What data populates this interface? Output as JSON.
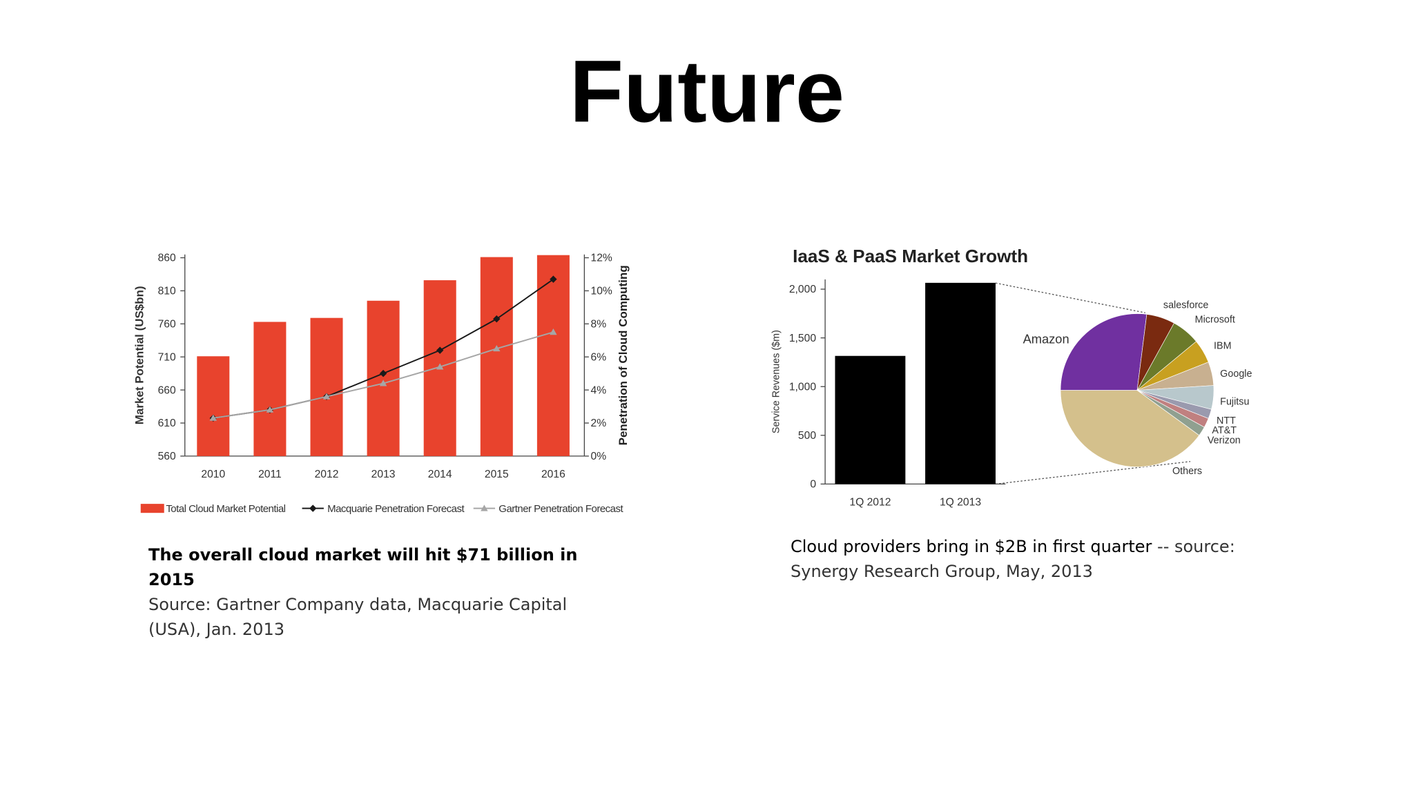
{
  "title": "Future",
  "captions": [
    {
      "headline": "The overall cloud market will hit $71 billion in 2015",
      "source": "Source: Gartner Company data, Macquarie Capital (USA), Jan. 2013"
    },
    {
      "headline": "Cloud providers bring in $2B in first quarter",
      "source": "-- source: Synergy Research Group, May, 2013"
    }
  ],
  "chart_data": [
    {
      "type": "bar",
      "categories": [
        "2010",
        "2011",
        "2012",
        "2013",
        "2014",
        "2015",
        "2016"
      ],
      "y_label": "Market Potential (US$bn)",
      "y2_label": "Penetration of Cloud Computing",
      "ylim": [
        560,
        865
      ],
      "yticks": [
        560,
        610,
        660,
        710,
        760,
        810,
        860
      ],
      "y2lim": [
        0,
        12.2
      ],
      "y2ticks": [
        {
          "value": 0,
          "label": "0%"
        },
        {
          "value": 2,
          "label": "2%"
        },
        {
          "value": 4,
          "label": "4%"
        },
        {
          "value": 6,
          "label": "6%"
        },
        {
          "value": 8,
          "label": "8%"
        },
        {
          "value": 10,
          "label": "10%"
        },
        {
          "value": 12,
          "label": "12%"
        }
      ],
      "legend": "bottom",
      "series": [
        {
          "name": "Total Cloud Market Potential",
          "type": "bar",
          "color": "#e8432d",
          "values": [
            711,
            763,
            769,
            795,
            826,
            861,
            864
          ]
        },
        {
          "name": "Macquarie Penetration Forecast",
          "type": "line",
          "axis": "y2",
          "marker": "diamond",
          "color": "#1a1a1a",
          "values": [
            2.3,
            2.8,
            3.6,
            5.0,
            6.4,
            8.3,
            10.7
          ]
        },
        {
          "name": "Gartner Penetration Forecast",
          "type": "line",
          "axis": "y2",
          "marker": "triangle",
          "color": "#a6a6a6",
          "values": [
            2.3,
            2.8,
            3.6,
            4.4,
            5.4,
            6.5,
            7.5
          ]
        }
      ]
    },
    {
      "type": "bar",
      "title": "IaaS & PaaS Market Growth",
      "categories": [
        "1Q 2012",
        "1Q 2013"
      ],
      "y_label": "Service Revenues ($m)",
      "ylim": [
        0,
        2100
      ],
      "yticks": [
        0,
        500,
        {
          "value": 1000,
          "label": "1,000"
        },
        {
          "value": 1500,
          "label": "1,500"
        },
        {
          "value": 2000,
          "label": "2,000"
        }
      ],
      "series": [
        {
          "type": "bar",
          "color": "#000000",
          "values": [
            1315,
            2065
          ]
        }
      ]
    },
    {
      "type": "pie",
      "categories": [
        "Amazon",
        "salesforce",
        "Microsoft",
        "IBM",
        "Google",
        "Fujitsu",
        "NTT",
        "AT&T",
        "Verizon",
        "Others"
      ],
      "values": [
        27,
        6,
        6,
        5,
        5,
        5,
        2,
        2,
        2,
        40
      ],
      "colors": [
        "#7030a0",
        "#7a2a10",
        "#6b7a2a",
        "#c8a020",
        "#c8b090",
        "#b8c8cc",
        "#9a9aae",
        "#c08080",
        "#90a090",
        "#d4c08c"
      ]
    }
  ]
}
